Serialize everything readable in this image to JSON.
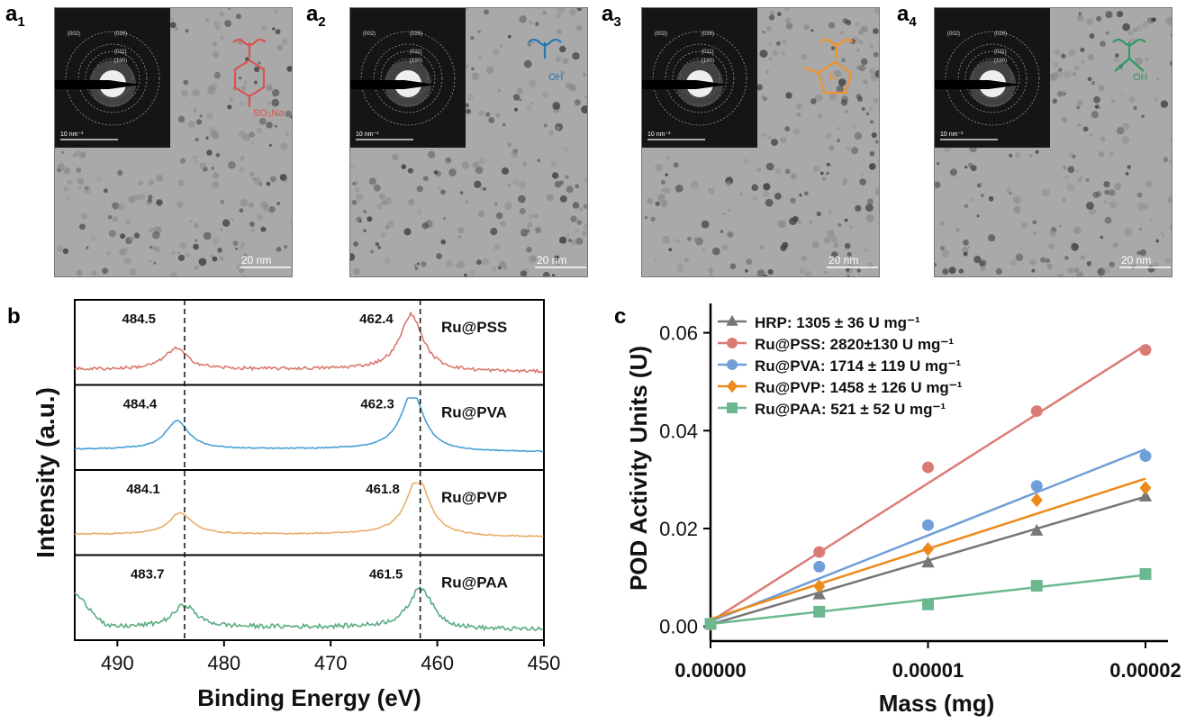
{
  "panels": {
    "a": [
      {
        "letter": "a",
        "sub": "1",
        "scale_bar": "20 nm",
        "saed_scale": "10 nm⁻¹",
        "rings": [
          "(002)",
          "(020)",
          "(011)",
          "(100)"
        ],
        "structure_color": "#d9534f",
        "structure_label": "SO₃Na"
      },
      {
        "letter": "a",
        "sub": "2",
        "scale_bar": "20 nm",
        "saed_scale": "10 nm⁻¹",
        "rings": [
          "(002)",
          "(020)",
          "(011)",
          "(100)"
        ],
        "structure_color": "#1f77b4",
        "structure_label": "OH"
      },
      {
        "letter": "a",
        "sub": "3",
        "scale_bar": "20 nm",
        "saed_scale": "10 nm⁻¹",
        "rings": [
          "(002)",
          "(020)",
          "(011)",
          "(100)"
        ],
        "structure_color": "#f0922b",
        "structure_label": "N"
      },
      {
        "letter": "a",
        "sub": "4",
        "scale_bar": "20 nm",
        "saed_scale": "10 nm⁻¹",
        "rings": [
          "(002)",
          "(020)",
          "(011)",
          "(100)"
        ],
        "structure_color": "#2e9b5f",
        "structure_label": "OH"
      }
    ],
    "b_letter": "b",
    "c_letter": "c"
  },
  "chart_data": [
    {
      "type": "line",
      "xlabel": "Binding Energy (eV)",
      "ylabel": "Intensity (a.u.)",
      "xlim": [
        494,
        450
      ],
      "xticks": [
        490,
        480,
        470,
        460,
        450
      ],
      "dashed_lines_x": [
        483.7,
        461.6
      ],
      "series": [
        {
          "name": "Ru@PSS",
          "color": "#d97a6e",
          "peak1_label": "484.5",
          "peak1": 484.5,
          "peak2_label": "462.4",
          "peak2": 462.4,
          "peak1_h": 0.33,
          "peak2_h": 0.88,
          "base": 0.12,
          "noise": 0.05
        },
        {
          "name": "Ru@PVA",
          "color": "#4a9fd4",
          "peak1_label": "484.4",
          "peak1": 484.4,
          "peak2_label": "462.3",
          "peak2": 462.3,
          "peak1_h": 0.45,
          "peak2_h": 0.92,
          "base": 0.2,
          "noise": 0.015
        },
        {
          "name": "Ru@PVP",
          "color": "#e9ad6a",
          "peak1_label": "484.1",
          "peak1": 484.1,
          "peak2_label": "461.8",
          "peak2": 461.8,
          "peak1_h": 0.34,
          "peak2_h": 0.92,
          "base": 0.2,
          "noise": 0.02
        },
        {
          "name": "Ru@PAA",
          "color": "#5bab82",
          "peak1_label": "483.7",
          "peak1": 483.7,
          "peak2_label": "461.5",
          "peak2": 461.5,
          "peak1_h": 0.35,
          "peak2_h": 0.65,
          "base": 0.08,
          "noise": 0.07
        }
      ]
    },
    {
      "type": "scatter",
      "xlabel": "Mass (mg)",
      "ylabel": "POD Activity Units (U)",
      "xlim": [
        0,
        2e-05
      ],
      "ylim": [
        -0.003,
        0.066
      ],
      "xticks": [
        "0.00000",
        "0.00001",
        "0.00002"
      ],
      "xtick_values": [
        0,
        1e-05,
        2e-05
      ],
      "yticks": [
        "0.00",
        "0.02",
        "0.04",
        "0.06"
      ],
      "ytick_values": [
        0,
        0.02,
        0.04,
        0.06
      ],
      "x": [
        0,
        5e-06,
        1e-05,
        1.5e-05,
        2e-05
      ],
      "series": [
        {
          "name": "HRP",
          "legend": "HRP: 1305 ± 36 U mg⁻¹",
          "color": "#777777",
          "marker": "triangle",
          "values": [
            0.0005,
            0.0065,
            0.013,
            0.0195,
            0.0265
          ],
          "fit": [
            0.0004,
            0.0265
          ]
        },
        {
          "name": "Ru@PSS",
          "legend": "Ru@PSS: 2820±130 U mg⁻¹",
          "color": "#db7b76",
          "marker": "circle",
          "values": [
            0.0005,
            0.0152,
            0.0325,
            0.044,
            0.0565
          ],
          "fit": [
            0.001,
            0.0575
          ]
        },
        {
          "name": "Ru@PVA",
          "legend": "Ru@PVA: 1714 ± 119 U mg⁻¹",
          "color": "#6f9fd8",
          "marker": "circle",
          "values": [
            0.0005,
            0.0122,
            0.0207,
            0.0287,
            0.0348
          ],
          "fit": [
            0.001,
            0.0362
          ]
        },
        {
          "name": "Ru@PVP",
          "legend": "Ru@PVP: 1458 ± 126 U mg⁻¹",
          "color": "#ec8a1a",
          "marker": "diamond",
          "values": [
            0.0005,
            0.0082,
            0.0158,
            0.0258,
            0.0283
          ],
          "fit": [
            0.0015,
            0.0302
          ]
        },
        {
          "name": "Ru@PAA",
          "legend": "Ru@PAA: 521 ± 52 U mg⁻¹",
          "color": "#6bb88f",
          "marker": "square",
          "values": [
            0.0005,
            0.003,
            0.0045,
            0.0083,
            0.0107
          ],
          "fit": [
            0.0005,
            0.0105
          ]
        }
      ]
    }
  ]
}
